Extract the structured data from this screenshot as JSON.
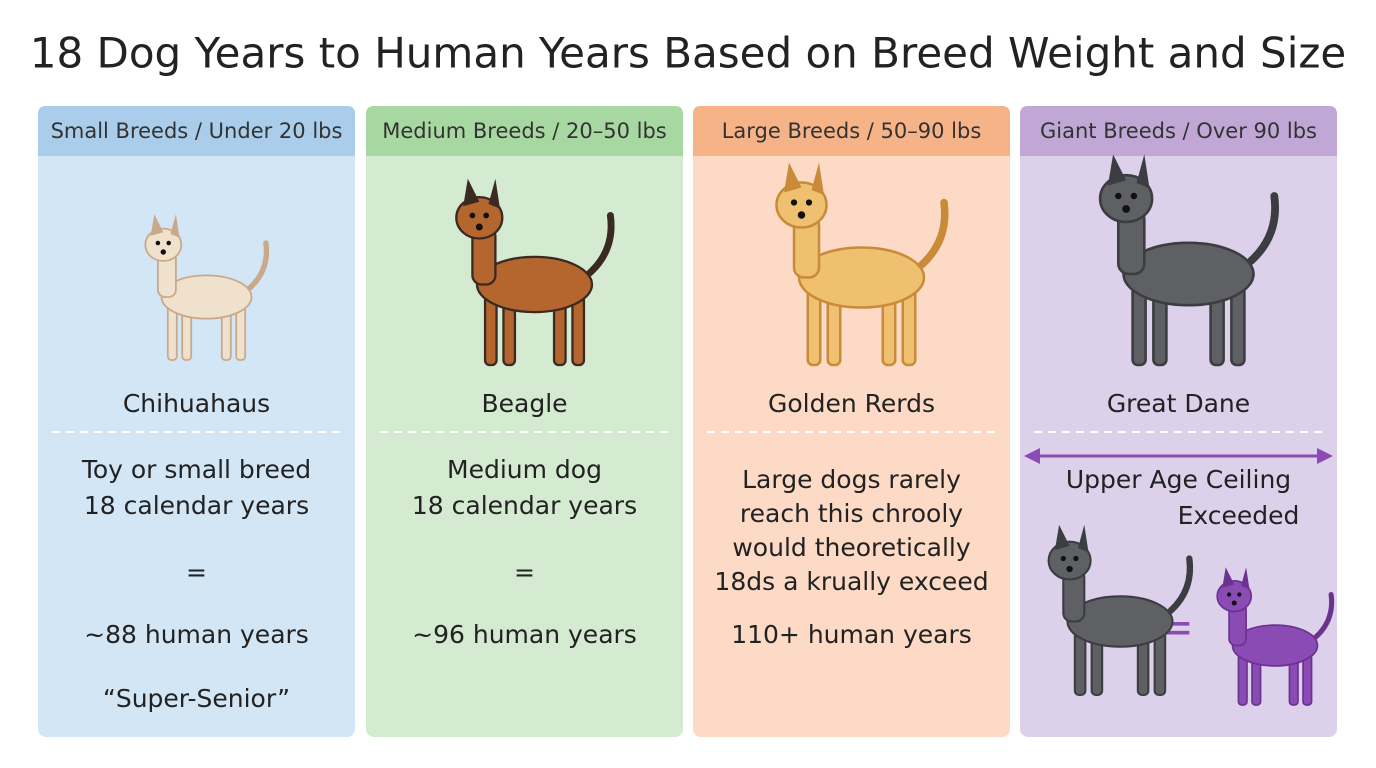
{
  "title": "18 Dog Years to Human Years Based on Breed Weight and Size",
  "columns": [
    {
      "header": "Small Breeds / Under 20 lbs",
      "breed": "Chihuahaus",
      "lines": [
        "Toy or small breed",
        "18 calendar years",
        "=",
        "~88 human years",
        "“Super-Senior”"
      ]
    },
    {
      "header": "Medium Breeds / 20–50 lbs",
      "breed": "Beagle",
      "lines": [
        "Medium dog",
        "18 calendar years",
        "=",
        "~96 human years"
      ]
    },
    {
      "header": "Large Breeds / 50–90 lbs",
      "breed": "Golden Rerds",
      "lines": [
        "Large dogs rarely",
        "reach this chrooly",
        "would theoretically",
        "18ds a krually exceed",
        "110+ human years"
      ]
    },
    {
      "header": "Giant Breeds / Over 90 lbs",
      "breed": "Great Dane",
      "lines": [
        "Upper Age Ceiling",
        "Exceeded",
        "="
      ]
    }
  ]
}
